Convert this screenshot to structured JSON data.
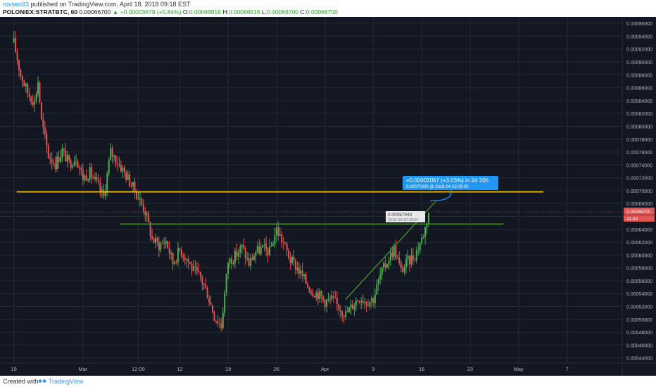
{
  "header": {
    "author": "rovsen93",
    "published": " published on TradingView.com, April 18, 2018 09:18 EST",
    "symbol": "POLONIEX:STRATBTC, 60",
    "last": "0.00066700",
    "change": "+0.00003679 (+5.84%)",
    "open_label": "O:",
    "open": "0.00066916",
    "high_label": "H:",
    "high": "0.00066916",
    "low_label": "L:",
    "low": "0.00066700",
    "close_label": "C:",
    "close": "0.00066700"
  },
  "footer": {
    "created_with": "Created with",
    "brand": "TradingView"
  },
  "chart_data": {
    "type": "candlestick",
    "y_ticks": [
      "0.00044000",
      "0.00046000",
      "0.00048000",
      "0.00050000",
      "0.00052000",
      "0.00054000",
      "0.00056000",
      "0.00058000",
      "0.00060000",
      "0.00062000",
      "0.00064000",
      "0.00066000",
      "0.00068000",
      "0.00070000",
      "0.00072000",
      "0.00074000",
      "0.00076000",
      "0.00078000",
      "0.00080000",
      "0.00082000",
      "0.00084000",
      "0.00086000",
      "0.00088000",
      "0.00090000",
      "0.00092000",
      "0.00094000",
      "0.00096000"
    ],
    "ylim": [
      0.000432,
      0.00097
    ],
    "x_ticks": [
      "19",
      "Mar",
      "12:00",
      "12",
      "19",
      "26",
      "Apr",
      "9",
      "16",
      "23",
      "May",
      "7"
    ],
    "x_tick_days": [
      0,
      10,
      18,
      24,
      31,
      38,
      45,
      52,
      59,
      66,
      73,
      80
    ],
    "xlim": [
      -2,
      88
    ],
    "price_label": "0.00066700",
    "countdown_label": "41:44",
    "close": {
      "day": 59.5,
      "x": 0.000667
    },
    "horizontal_lines": [
      {
        "name": "resistance",
        "color": "#f7c30f",
        "price": 0.000698,
        "from_day": 0.4,
        "to_day": 76.6
      },
      {
        "name": "support",
        "color": "#4c8a2e",
        "price": 0.000648,
        "from_day": 15.4,
        "to_day": 70.8
      }
    ],
    "trend_line": {
      "color": "#4c8a2e",
      "from": [
        48.0,
        0.000531
      ],
      "to": [
        61.0,
        0.000683
      ]
    },
    "projection": {
      "text": "+0.00002057 (+3.03%) in 2d 20h",
      "subtext": "0.00070000  @ 2018-04-23  05:00",
      "color": "#2196f3",
      "from": [
        60.2,
        0.000684
      ],
      "to": [
        63.2,
        0.000703
      ]
    },
    "cursor_label": {
      "price": "0.00067943",
      "date": "2018-04-20 08:00",
      "day": 60.5,
      "x": 0.0006794
    },
    "colors": {
      "up": "#4caf50",
      "down": "#e25555",
      "grid": "#242a36"
    },
    "price_path": [
      [
        0,
        0.00093
      ],
      [
        1,
        0.00088
      ],
      [
        2,
        0.000852
      ],
      [
        3,
        0.000838
      ],
      [
        3.5,
        0.00087
      ],
      [
        4,
        0.000808
      ],
      [
        5,
        0.000755
      ],
      [
        6,
        0.000742
      ],
      [
        7,
        0.000762
      ],
      [
        8,
        0.000742
      ],
      [
        9,
        0.000752
      ],
      [
        10,
        0.00072
      ],
      [
        11,
        0.000728
      ],
      [
        12,
        0.00071
      ],
      [
        13,
        0.00069
      ],
      [
        14,
        0.00076
      ],
      [
        15,
        0.000745
      ],
      [
        16,
        0.000728
      ],
      [
        17,
        0.00071
      ],
      [
        18,
        0.00069
      ],
      [
        19,
        0.000668
      ],
      [
        20,
        0.000625
      ],
      [
        21,
        0.000615
      ],
      [
        22,
        0.000622
      ],
      [
        23,
        0.000588
      ],
      [
        24,
        0.000608
      ],
      [
        25,
        0.000595
      ],
      [
        26,
        0.000575
      ],
      [
        27,
        0.000565
      ],
      [
        28,
        0.00054
      ],
      [
        29,
        0.000505
      ],
      [
        30,
        0.00049
      ],
      [
        31,
        0.00059
      ],
      [
        32,
        0.000598
      ],
      [
        33,
        0.000612
      ],
      [
        34,
        0.000586
      ],
      [
        35,
        0.000605
      ],
      [
        36,
        0.00061
      ],
      [
        37,
        0.000605
      ],
      [
        38,
        0.00064
      ],
      [
        39,
        0.000618
      ],
      [
        40,
        0.000592
      ],
      [
        41,
        0.00058
      ],
      [
        42,
        0.000562
      ],
      [
        43,
        0.000545
      ],
      [
        44,
        0.00054
      ],
      [
        45,
        0.000528
      ],
      [
        46,
        0.00053
      ],
      [
        47,
        0.00052
      ],
      [
        48,
        0.000508
      ],
      [
        49,
        0.000522
      ],
      [
        50,
        0.000535
      ],
      [
        51,
        0.000528
      ],
      [
        52,
        0.000532
      ],
      [
        53,
        0.000568
      ],
      [
        54,
        0.00059
      ],
      [
        55,
        0.00061
      ],
      [
        56,
        0.000575
      ],
      [
        57,
        0.00059
      ],
      [
        58,
        0.0006
      ],
      [
        59,
        0.000625
      ],
      [
        59.5,
        0.000642
      ],
      [
        60,
        0.000667
      ]
    ]
  }
}
